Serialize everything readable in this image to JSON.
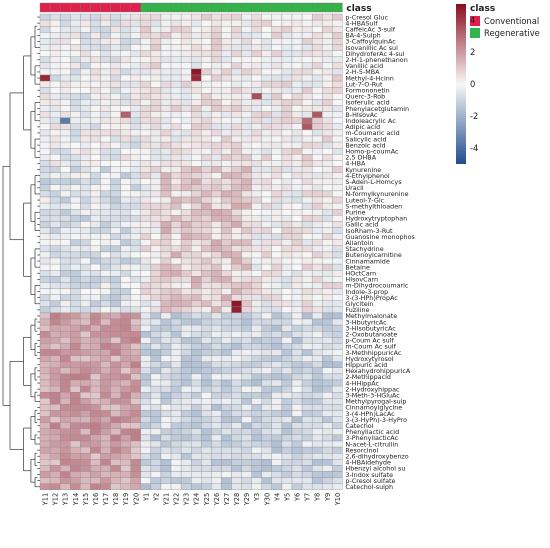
{
  "chart_data": {
    "type": "heatmap",
    "title": "",
    "annotation_title": "class",
    "classes": [
      {
        "name": "Conventional",
        "color": "#e0204c"
      },
      {
        "name": "Regenerative",
        "color": "#33b34a"
      }
    ],
    "column_classes": [
      0,
      0,
      0,
      0,
      0,
      0,
      0,
      0,
      0,
      0,
      1,
      1,
      1,
      1,
      1,
      1,
      1,
      1,
      1,
      1,
      1,
      1,
      1,
      1,
      1,
      1,
      1,
      1,
      1,
      1
    ],
    "columns": [
      "Y11",
      "Y12",
      "Y13",
      "Y14",
      "Y15",
      "Y16",
      "Y17",
      "Y18",
      "Y19",
      "Y20",
      "Y1",
      "Y2",
      "Y21",
      "Y22",
      "Y23",
      "Y24",
      "Y25",
      "Y26",
      "Y27",
      "Y28",
      "Y29",
      "Y3",
      "Y30",
      "Y4",
      "Y5",
      "Y6",
      "Y7",
      "Y8",
      "Y9",
      "Y10"
    ],
    "rows": [
      "p-Cresol Gluc",
      "4-HBASulf",
      "CaffeicAc 3-sulf",
      "BA-4-Sulph",
      "3-CaffoylquinAc",
      "Isovanillic Ac sul",
      "DihydroferAc 4-sul",
      "2-H-1-phenethanon",
      "Vanillic acid",
      "2-H-5-MBA",
      "Methyl-4-Hcinn",
      "Lut-7-O-Rut",
      "Formononetin",
      "Querc-3-Rob",
      "Isoferulic acid",
      "Phenylacetglutamin",
      "B-HIsovAc",
      "Indoleacrylic Ac",
      "Adipic acid",
      "m-Coumaric acid",
      "Salicylic acid",
      "Benzoic acid",
      "Homo-p-coumAc",
      "2,5 DHBA",
      "4-HBA",
      "Kynurenine",
      "4-Ethylphenol",
      "S-Aden-L-Homcys",
      "Uracil",
      "N-formylkynurenine",
      "Luteol-7-Glc",
      "S-methylthioaden",
      "Purine",
      "Hydroxytryptophan",
      "Gallic acid",
      "IsoRham-3-Rut",
      "Guanosine monophos",
      "Allantoin",
      "Stachydrine",
      "Butenoylcarnitine",
      "Cinnamamide",
      "Betaine",
      "HOctCarn",
      "HIsovCarn",
      "m-Dihydrocoumaric",
      "Indole-3-prop",
      "3-(3-HPh)PropAc",
      "Glycitein",
      "Fuziline",
      "Methylmalonate",
      "3-HbutyricAc",
      "3-HIsobutyricAc",
      "2-Oxobutanoate",
      "p-Coum Ac sulf",
      "m-Coum Ac sulf",
      "3-MethhippuricAc",
      "Hydroxytyrosol",
      "Hippuric acid",
      "HexahydrohippuricA",
      "2-Methippacid",
      "4-HHippAc",
      "2-Hydroxyhippac",
      "3-Meth-3-HGluAc",
      "Methylpyrogal-sulp",
      "Cinnamoylglycine",
      "3-(4-HPh)LacAc",
      "3-(3-HyPh)-3-HyPro",
      "Catechol",
      "Phenyllactic acid",
      "3-PhenyllacticAc",
      "N-acet-L-citrullin",
      "Resorcinol",
      "2,6-dihydroxybenzo",
      "4-HBAldehyde",
      "Hbenzyl alcohol su",
      "3-Indox sulfate",
      "p-Cresol sulfate",
      "Catechol-sulph"
    ],
    "color_scale": {
      "min": -5,
      "max": 5,
      "ticks": [
        4,
        2,
        0,
        -2,
        -4
      ],
      "high_color": "#8b0d1f",
      "mid_color": "#f7f7f7",
      "low_color": "#1f4e8c"
    }
  }
}
